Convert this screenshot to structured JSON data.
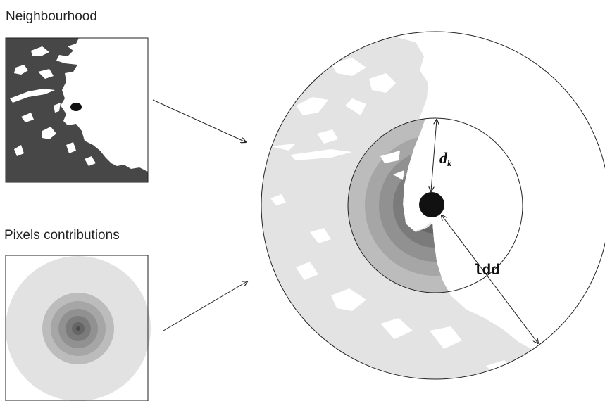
{
  "panels": {
    "neighbourhood_title": "Neighbourhood",
    "contributions_title": "Pixels contributions"
  },
  "main": {
    "distance_symbol": "d",
    "distance_subscript": "k",
    "radius_label": "ldd"
  },
  "colors": {
    "land_dark": "#474747",
    "land_light": "#e3e3e3",
    "ring_outer": "#e2e2e2",
    "ring_1": "#bcbcbc",
    "ring_2": "#a6a6a6",
    "ring_3": "#919191",
    "ring_4": "#7b7b7b",
    "ring_5": "#666666",
    "center_point": "#111111"
  }
}
